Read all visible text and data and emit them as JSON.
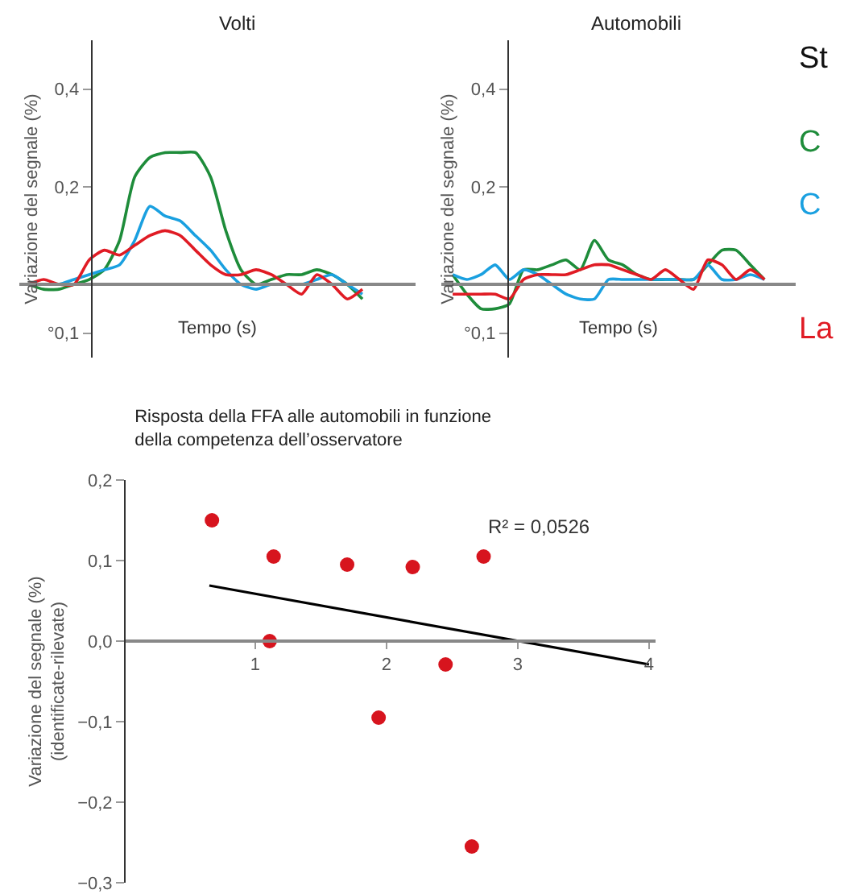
{
  "chart_data": [
    {
      "type": "line",
      "title": "Volti",
      "xlabel": "Tempo (s)",
      "ylabel": "Variazione del segnale (%)",
      "categories": [
        null,
        null,
        null,
        null,
        null,
        null,
        null,
        null,
        null,
        null,
        null,
        null,
        null,
        null,
        null,
        null,
        null,
        null,
        null,
        null,
        null,
        null,
        null
      ],
      "ylim": [
        -0.15,
        0.5
      ],
      "yticks": [
        {
          "value": -0.1,
          "label": "°0,1"
        },
        {
          "value": 0.2,
          "label": "0,2"
        },
        {
          "value": 0.4,
          "label": "0,4"
        }
      ],
      "tick_labels": "y",
      "grid": false,
      "legend": false,
      "marker": "none",
      "line_style": "solid",
      "series": [
        {
          "color": "#1e8c3a",
          "values": [
            0,
            -0.01,
            -0.01,
            0,
            0.01,
            0.03,
            0.09,
            0.22,
            0.26,
            0.27,
            0.27,
            0.27,
            0.22,
            0.11,
            0.03,
            0,
            0.01,
            0.02,
            0.02,
            0.03,
            0.02,
            0,
            -0.03
          ]
        },
        {
          "color": "#1aa0e0",
          "values": [
            0,
            0,
            0,
            0.01,
            0.02,
            0.03,
            0.04,
            0.09,
            0.16,
            0.14,
            0.13,
            0.1,
            0.07,
            0.03,
            0,
            -0.01,
            0,
            0,
            0,
            0.01,
            0.02,
            0,
            -0.02
          ]
        },
        {
          "color": "#e01b24",
          "values": [
            0,
            0.01,
            0,
            0,
            0.05,
            0.07,
            0.06,
            0.08,
            0.1,
            0.11,
            0.1,
            0.07,
            0.04,
            0.02,
            0.02,
            0.03,
            0.02,
            0,
            -0.02,
            0.02,
            0,
            -0.03,
            -0.01
          ]
        }
      ]
    },
    {
      "type": "line",
      "title": "Automobili",
      "xlabel": "Tempo (s)",
      "ylabel": "Variazione del segnale (%)",
      "legend_title": "St",
      "categories": [
        null,
        null,
        null,
        null,
        null,
        null,
        null,
        null,
        null,
        null,
        null,
        null,
        null,
        null,
        null,
        null,
        null,
        null,
        null,
        null,
        null,
        null,
        null
      ],
      "ylim": [
        -0.15,
        0.5
      ],
      "yticks": [
        {
          "value": -0.1,
          "label": "°0,1"
        },
        {
          "value": 0.2,
          "label": "0,2"
        },
        {
          "value": 0.4,
          "label": "0,4"
        }
      ],
      "tick_labels": "y",
      "grid": false,
      "legend": "right",
      "marker": "none",
      "line_style": "solid",
      "series": [
        {
          "name": "C",
          "color": "#1e8c3a",
          "values": [
            0.02,
            -0.02,
            -0.05,
            -0.05,
            -0.04,
            0.03,
            0.03,
            0.04,
            0.05,
            0.03,
            0.09,
            0.05,
            0.04,
            0.02,
            0.01,
            0.01,
            0.01,
            0.01,
            0.04,
            0.07,
            0.07,
            0.04,
            0.01
          ]
        },
        {
          "name": "C",
          "color": "#1aa0e0",
          "values": [
            0.02,
            0.01,
            0.02,
            0.04,
            0.01,
            0.03,
            0.02,
            0,
            -0.02,
            -0.03,
            -0.03,
            0.01,
            0.01,
            0.01,
            0.01,
            0.01,
            0.01,
            0.01,
            0.04,
            0.01,
            0.01,
            0.02,
            0.01
          ]
        },
        {
          "name": "La",
          "color": "#e01b24",
          "values": [
            -0.02,
            -0.02,
            -0.02,
            -0.02,
            -0.03,
            0.01,
            0.02,
            0.02,
            0.02,
            0.03,
            0.04,
            0.04,
            0.03,
            0.02,
            0.01,
            0.03,
            0.01,
            -0.01,
            0.05,
            0.04,
            0.01,
            0.03,
            0.01
          ]
        }
      ]
    },
    {
      "type": "scatter",
      "title": "Risposta della FFA alle automobili in funzione\ndella competenza dell’osservatore",
      "ylabel": "Variazione del segnale (%)\n(identificate-rilevate)",
      "annotations": [
        "R² = 0,0526"
      ],
      "xlim": [
        0,
        4.05
      ],
      "xticks": [
        1,
        2,
        3,
        4
      ],
      "ylim": [
        -0.3,
        0.2
      ],
      "yticks": [
        {
          "value": -0.3,
          "label": "−0,3"
        },
        {
          "value": -0.2,
          "label": "−0,2"
        },
        {
          "value": -0.1,
          "label": "−0,1"
        },
        {
          "value": 0,
          "label": "0,0"
        },
        {
          "value": 0.1,
          "label": "0,1"
        },
        {
          "value": 0.2,
          "label": "0,2"
        }
      ],
      "grid": false,
      "legend": false,
      "marker": "circle",
      "series": [
        {
          "color": "#d7141e",
          "x": [
            0.67,
            1.14,
            1.11,
            1.7,
            2.2,
            2.74,
            2.45,
            1.94,
            2.65
          ],
          "values": [
            0.15,
            0.105,
            0,
            0.095,
            0.092,
            0.105,
            -0.029,
            -0.095,
            -0.255
          ]
        },
        {
          "type": "line",
          "marker": "none",
          "color": "#000000",
          "x": [
            0.65,
            4.0
          ],
          "values": [
            0.069,
            -0.029
          ]
        }
      ]
    }
  ]
}
